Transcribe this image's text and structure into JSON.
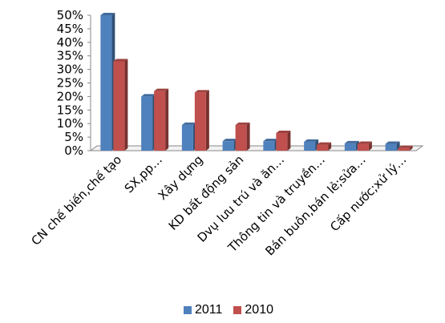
{
  "chart_data": {
    "type": "bar",
    "categories": [
      "CN chế biến,chế tạo",
      "SX,pp…",
      "Xây dựng",
      "KD bất động sản",
      "Dvụ lưu trú và ăn…",
      "Thông tin và truyền…",
      "Bán buôn,bán lẻ;sửa…",
      "Cấp nước;xử lý…"
    ],
    "series": [
      {
        "name": "2011",
        "color": "#4f81bd",
        "values": [
          50,
          20,
          9.5,
          3.5,
          3.5,
          3.3,
          2.7,
          2.5
        ]
      },
      {
        "name": "2010",
        "color": "#c0504d",
        "values": [
          33,
          22,
          21.5,
          9.5,
          6.5,
          2.2,
          2.5,
          1.0
        ]
      }
    ],
    "yticks": [
      "0%",
      "5%",
      "10%",
      "15%",
      "20%",
      "25%",
      "30%",
      "35%",
      "40%",
      "45%",
      "50%"
    ],
    "ylim": [
      0,
      50
    ],
    "title": "",
    "xlabel": "",
    "ylabel": "",
    "grid": false,
    "legend_position": "bottom"
  }
}
